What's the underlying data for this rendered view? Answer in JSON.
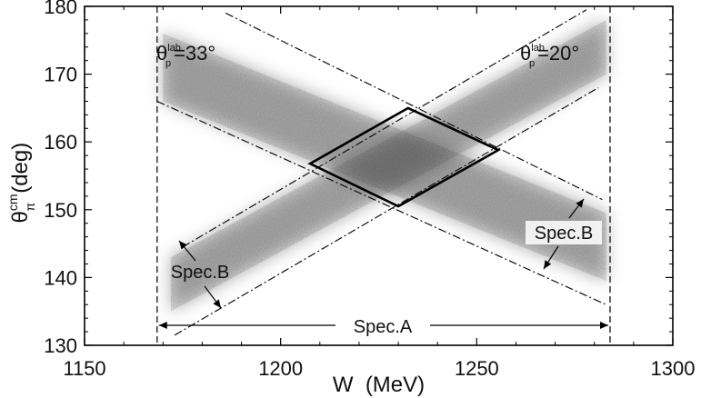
{
  "chart_data": {
    "type": "heatmap",
    "title": "",
    "xlabel": "W  (MeV)",
    "ylabel": {
      "base": "θ",
      "superscript": "cm",
      "subscript": "π",
      "rest": "(deg)"
    },
    "xlim": [
      1150,
      1300
    ],
    "ylim": [
      130,
      180
    ],
    "x_ticks": [
      1150,
      1200,
      1250,
      1300
    ],
    "y_ticks": [
      130,
      140,
      150,
      160,
      170,
      180
    ],
    "grid": false,
    "colors": {
      "density": "#3a3a3a",
      "lines": "#111111"
    },
    "bands": [
      {
        "name": "θp lab = 33° band",
        "center_line": [
          [
            1170,
            171.0
          ],
          [
            1283,
            144.5
          ]
        ],
        "half_width_deg": 5.0
      },
      {
        "name": "θp lab = 20° band",
        "center_line": [
          [
            1172,
            139.0
          ],
          [
            1283,
            174.0
          ]
        ],
        "half_width_deg": 4.0
      }
    ],
    "acceptance_lines": [
      {
        "type": "vertical_dashed",
        "x": 1168.5
      },
      {
        "type": "vertical_dashed",
        "x": 1284
      },
      {
        "type": "dash_dot",
        "points": [
          [
            1186,
            179
          ],
          [
            1282,
            151.5
          ]
        ]
      },
      {
        "type": "dash_dot",
        "points": [
          [
            1168.5,
            166
          ],
          [
            1283,
            136
          ]
        ]
      },
      {
        "type": "dash_dot",
        "points": [
          [
            1173,
            131.5
          ],
          [
            1281,
            168
          ]
        ]
      },
      {
        "type": "dash_dot",
        "points": [
          [
            1175,
            144.5
          ],
          [
            1278,
            179.5
          ]
        ]
      }
    ],
    "overlap_region": {
      "type": "diamond",
      "points": [
        [
          1207.5,
          156.8
        ],
        [
          1232.5,
          165.0
        ],
        [
          1255.5,
          158.8
        ],
        [
          1230.0,
          150.5
        ]
      ]
    },
    "annotations": [
      {
        "id": "theta33",
        "base": "θ",
        "sup": "lab",
        "sub": "p",
        "value": "=33°"
      },
      {
        "id": "theta20",
        "base": "θ",
        "sup": "lab",
        "sub": "p",
        "value": "=20°"
      },
      {
        "id": "specA",
        "text": "Spec.A"
      },
      {
        "id": "specB_left",
        "text": "Spec.B"
      },
      {
        "id": "specB_right",
        "text": "Spec.B"
      }
    ]
  }
}
